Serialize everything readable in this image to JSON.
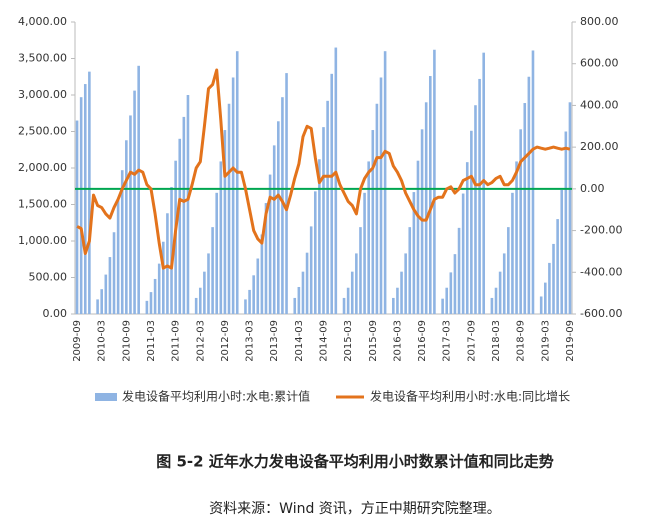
{
  "chart_data": {
    "type": "bar_line",
    "categories": [
      "2009-09",
      null,
      null,
      null,
      null,
      null,
      "2010-03",
      null,
      null,
      null,
      null,
      null,
      "2010-09",
      null,
      null,
      null,
      null,
      null,
      "2011-03",
      null,
      null,
      null,
      null,
      null,
      "2011-09",
      null,
      null,
      null,
      null,
      null,
      "2012-03",
      null,
      null,
      null,
      null,
      null,
      "2012-09",
      null,
      null,
      null,
      null,
      null,
      "2013-03",
      null,
      null,
      null,
      null,
      null,
      "2013-09",
      null,
      null,
      null,
      null,
      null,
      "2014-03",
      null,
      null,
      null,
      null,
      null,
      "2014-09",
      null,
      null,
      null,
      null,
      null,
      "2015-03",
      null,
      null,
      null,
      null,
      null,
      "2015-09",
      null,
      null,
      null,
      null,
      null,
      "2016-03",
      null,
      null,
      null,
      null,
      null,
      "2016-09",
      null,
      null,
      null,
      null,
      null,
      "2017-03",
      null,
      null,
      null,
      null,
      null,
      "2017-09",
      null,
      null,
      null,
      null,
      null,
      "2018-03",
      null,
      null,
      null,
      null,
      null,
      "2018-09",
      null,
      null,
      null,
      null,
      null,
      "2019-03",
      null,
      null,
      null,
      null,
      null,
      "2019-09"
    ],
    "series": [
      {
        "name": "发电设备平均利用小时:水电:累计值",
        "color": "#8fb4e3",
        "kind": "bar",
        "values": [
          2650,
          2970,
          3150,
          3320,
          null,
          200,
          340,
          540,
          780,
          1120,
          1560,
          1970,
          2380,
          2720,
          3060,
          3400,
          null,
          180,
          300,
          480,
          690,
          990,
          1380,
          1740,
          2100,
          2400,
          2700,
          3000,
          null,
          220,
          360,
          580,
          830,
          1190,
          1660,
          2090,
          2520,
          2880,
          3240,
          3600,
          null,
          200,
          330,
          530,
          760,
          1090,
          1520,
          1910,
          2310,
          2640,
          2970,
          3300,
          null,
          220,
          370,
          580,
          840,
          1200,
          1680,
          2120,
          2560,
          2920,
          3290,
          3650,
          null,
          220,
          360,
          580,
          830,
          1190,
          1660,
          2090,
          2520,
          2880,
          3240,
          3600,
          null,
          220,
          360,
          580,
          830,
          1190,
          1670,
          2100,
          2530,
          2900,
          3260,
          3620,
          null,
          210,
          360,
          570,
          820,
          1180,
          1650,
          2080,
          2510,
          2860,
          3220,
          3580,
          null,
          220,
          360,
          580,
          830,
          1190,
          1660,
          2090,
          2530,
          2890,
          3250,
          3610,
          null,
          240,
          430,
          700,
          960,
          1300,
          1700,
          2500,
          2900
        ]
      },
      {
        "name": "发电设备平均利用小时:水电:同比增长",
        "color": "#e3731c",
        "kind": "line",
        "axis": "y2",
        "values": [
          -180,
          -190,
          -310,
          -250,
          -30,
          -80,
          -90,
          -120,
          -140,
          -90,
          -50,
          0,
          40,
          80,
          70,
          90,
          80,
          20,
          0,
          -120,
          -260,
          -380,
          -370,
          -380,
          -200,
          -50,
          -60,
          -50,
          20,
          100,
          130,
          300,
          480,
          500,
          570,
          330,
          60,
          80,
          100,
          80,
          80,
          0,
          -100,
          -200,
          -240,
          -260,
          -120,
          -40,
          -50,
          -30,
          -60,
          -100,
          -30,
          50,
          120,
          250,
          300,
          290,
          150,
          30,
          60,
          60,
          60,
          80,
          20,
          -20,
          -60,
          -80,
          -120,
          0,
          50,
          80,
          100,
          150,
          150,
          180,
          170,
          110,
          80,
          40,
          -20,
          -60,
          -100,
          -130,
          -150,
          -150,
          -100,
          -50,
          -40,
          -40,
          0,
          10,
          -20,
          0,
          40,
          50,
          60,
          20,
          20,
          40,
          20,
          30,
          50,
          60,
          20,
          20,
          40,
          80,
          130,
          150,
          170,
          190,
          200,
          195,
          190,
          195,
          200,
          195,
          190,
          195,
          190
        ]
      }
    ],
    "ylim": [
      0,
      4000
    ],
    "yticks": [
      {
        "value": 0,
        "label": "0.00"
      },
      {
        "value": 500,
        "label": "500.00"
      },
      {
        "value": 1000,
        "label": "1,000.00"
      },
      {
        "value": 1500,
        "label": "1,500.00"
      },
      {
        "value": 2000,
        "label": "2,000.00"
      },
      {
        "value": 2500,
        "label": "2,500.00"
      },
      {
        "value": 3000,
        "label": "3,000.00"
      },
      {
        "value": 3500,
        "label": "3,500.00"
      },
      {
        "value": 4000,
        "label": "4,000.00"
      }
    ],
    "y2lim": [
      -600,
      800
    ],
    "y2ticks": [
      {
        "value": -600,
        "label": "-600.00"
      },
      {
        "value": -400,
        "label": "-400.00"
      },
      {
        "value": -200,
        "label": "-200.00"
      },
      {
        "value": 0,
        "label": "0.00"
      },
      {
        "value": 200,
        "label": "200.00"
      },
      {
        "value": 400,
        "label": "400.00"
      },
      {
        "value": 600,
        "label": "600.00"
      },
      {
        "value": 800,
        "label": "800.00"
      }
    ],
    "zero_line_color": "#00a651",
    "figure_caption": "图 5-2  近年水力发电设备平均利用小时数累计值和同比走势",
    "source": "资料来源：Wind 资讯，方正中期研究院整理。"
  }
}
